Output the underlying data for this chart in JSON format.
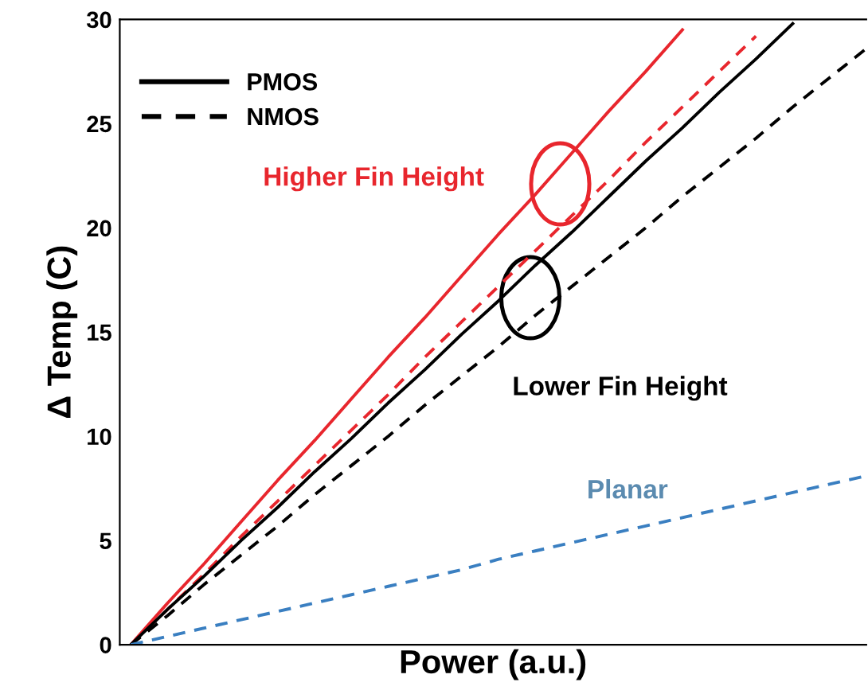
{
  "chart_data": {
    "type": "line",
    "xlabel": "Power (a.u.)",
    "ylabel": "Δ Temp (C)",
    "ylim": [
      0,
      30
    ],
    "yticks": [
      0,
      5,
      10,
      15,
      20,
      25,
      30
    ],
    "tick_labels": "y",
    "grid": false,
    "legend": "top left",
    "categories": [
      null,
      null,
      null,
      null,
      null,
      null,
      null,
      null,
      null,
      null,
      null,
      null,
      null,
      null,
      null,
      null,
      null,
      null,
      null,
      null,
      null
    ],
    "series": [
      {
        "color": "#e8262d",
        "line_style": "solid",
        "values": [
          0,
          2.0,
          3.9,
          5.9,
          7.9,
          9.8,
          11.8,
          13.8,
          15.7,
          17.7,
          19.7,
          21.6,
          23.6,
          25.6,
          27.5,
          29.5,
          null,
          null,
          null,
          null,
          null
        ]
      },
      {
        "color": "#e8262d",
        "line_style": "dashed",
        "values": [
          0,
          1.7,
          3.4,
          5.2,
          6.9,
          8.6,
          10.3,
          12.0,
          13.8,
          15.5,
          17.2,
          18.9,
          20.6,
          22.3,
          24.1,
          25.8,
          27.5,
          29.2,
          null,
          null,
          null
        ]
      },
      {
        "name": "PMOS",
        "color": "#000000",
        "line_style": "solid",
        "values": [
          0,
          1.7,
          3.3,
          5.0,
          6.6,
          8.3,
          9.9,
          11.6,
          13.2,
          14.9,
          16.5,
          18.2,
          19.8,
          21.5,
          23.2,
          24.8,
          26.5,
          28.1,
          29.8,
          null,
          null
        ]
      },
      {
        "name": "NMOS",
        "color": "#000000",
        "line_style": "dashed",
        "values": [
          0,
          1.4,
          2.9,
          4.3,
          5.7,
          7.2,
          8.6,
          10.0,
          11.5,
          12.9,
          14.3,
          15.8,
          17.2,
          18.6,
          20.0,
          21.5,
          22.9,
          24.3,
          25.8,
          27.2,
          28.6
        ]
      },
      {
        "name": "Planar",
        "color": "#3a7fc1",
        "line_style": "dashed",
        "values": [
          0,
          0.4,
          0.8,
          1.2,
          1.6,
          2.0,
          2.4,
          2.8,
          3.2,
          3.6,
          4.1,
          4.5,
          4.9,
          5.3,
          5.7,
          6.1,
          6.5,
          6.9,
          7.3,
          7.7,
          8.1
        ]
      }
    ],
    "annotations": [
      "Higher Fin Height",
      "Lower Fin Height"
    ]
  }
}
